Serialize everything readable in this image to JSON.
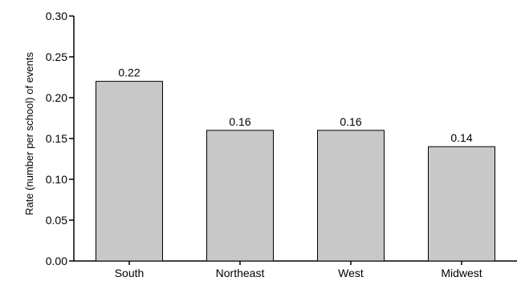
{
  "chart_data": {
    "type": "bar",
    "categories": [
      "South",
      "Northeast",
      "West",
      "Midwest"
    ],
    "values": [
      0.22,
      0.16,
      0.16,
      0.14
    ],
    "data_labels": [
      "0.22",
      "0.16",
      "0.16",
      "0.14"
    ],
    "title": "",
    "xlabel": "",
    "ylabel": "Rate (number per school) of events",
    "ylim": [
      0,
      0.3
    ],
    "yticks": [
      "0.00",
      "0.05",
      "0.10",
      "0.15",
      "0.20",
      "0.25",
      "0.30"
    ],
    "grid": false,
    "bar_color": "#c8c8c8",
    "bar_edge_color": "#000000"
  }
}
